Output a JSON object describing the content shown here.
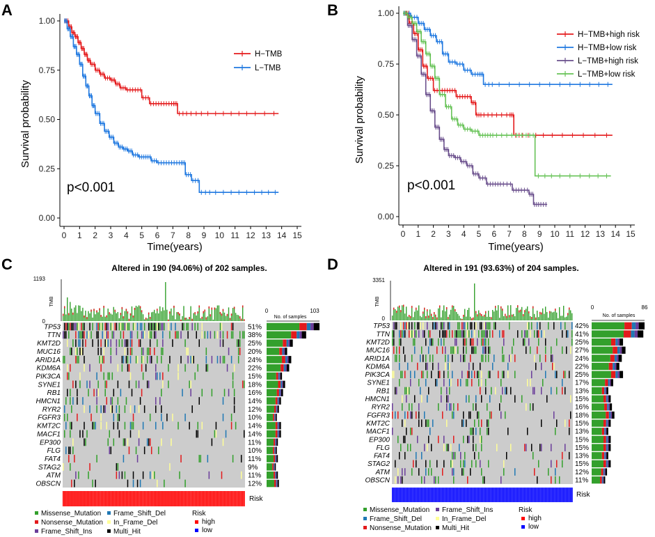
{
  "chart_data": [
    {
      "type": "line",
      "panel": "A",
      "kind": "kaplan-meier",
      "xlabel": "Time(years)",
      "ylabel": "Survival probability",
      "xticks": [
        "0",
        "1",
        "2",
        "3",
        "4",
        "5",
        "6",
        "7",
        "8",
        "9",
        "10",
        "11",
        "12",
        "13",
        "14",
        "15"
      ],
      "yticks": [
        "0.00",
        "0.25",
        "0.50",
        "0.75",
        "1.00"
      ],
      "xlim": [
        0,
        15
      ],
      "ylim": [
        0,
        1
      ],
      "pvalue": "p<0.001",
      "series": [
        {
          "name": "H−TMB",
          "color": "#e41a1c",
          "x": [
            0,
            0.3,
            0.5,
            0.7,
            0.9,
            1.1,
            1.3,
            1.5,
            1.7,
            2.0,
            2.3,
            2.6,
            3.0,
            3.3,
            3.6,
            4.0,
            4.5,
            5.0,
            5.5,
            6.0,
            6.5,
            7.0,
            7.3,
            8.0,
            9.0,
            10.5,
            12.0,
            13.8
          ],
          "y": [
            1.0,
            0.97,
            0.94,
            0.92,
            0.89,
            0.86,
            0.83,
            0.8,
            0.78,
            0.75,
            0.73,
            0.71,
            0.7,
            0.68,
            0.66,
            0.65,
            0.65,
            0.61,
            0.58,
            0.58,
            0.58,
            0.58,
            0.53,
            0.53,
            0.53,
            0.53,
            0.53,
            0.53
          ]
        },
        {
          "name": "L−TMB",
          "color": "#1f78e0",
          "x": [
            0,
            0.2,
            0.4,
            0.6,
            0.8,
            1.0,
            1.2,
            1.4,
            1.6,
            1.8,
            2.0,
            2.3,
            2.6,
            2.9,
            3.2,
            3.5,
            3.8,
            4.1,
            4.4,
            4.8,
            5.2,
            5.6,
            6.0,
            6.5,
            7.0,
            7.5,
            7.8,
            8.2,
            8.7,
            9.5,
            11.0,
            12.5,
            13.8
          ],
          "y": [
            1.0,
            0.96,
            0.92,
            0.87,
            0.83,
            0.78,
            0.72,
            0.67,
            0.62,
            0.57,
            0.53,
            0.48,
            0.44,
            0.41,
            0.38,
            0.36,
            0.35,
            0.34,
            0.32,
            0.31,
            0.31,
            0.29,
            0.28,
            0.28,
            0.28,
            0.28,
            0.22,
            0.19,
            0.13,
            0.13,
            0.13,
            0.13,
            0.13
          ]
        }
      ]
    },
    {
      "type": "line",
      "panel": "B",
      "kind": "kaplan-meier",
      "xlabel": "Time(years)",
      "ylabel": "Survival probability",
      "xticks": [
        "0",
        "1",
        "2",
        "3",
        "4",
        "5",
        "6",
        "7",
        "8",
        "9",
        "10",
        "11",
        "12",
        "13",
        "14",
        "15"
      ],
      "yticks": [
        "0.00",
        "0.25",
        "0.50",
        "0.75",
        "1.00"
      ],
      "xlim": [
        0,
        15
      ],
      "ylim": [
        0,
        1
      ],
      "pvalue": "p<0.001",
      "series": [
        {
          "name": "H−TMB+high risk",
          "color": "#e41a1c",
          "x": [
            0,
            0.4,
            0.7,
            1.0,
            1.3,
            1.6,
            2.0,
            2.5,
            3.0,
            3.5,
            4.0,
            4.5,
            4.8,
            5.2,
            6.0,
            7.0,
            7.3,
            8.0,
            9.5,
            11.5,
            13.8
          ],
          "y": [
            1.0,
            0.95,
            0.9,
            0.82,
            0.74,
            0.68,
            0.62,
            0.62,
            0.62,
            0.59,
            0.59,
            0.56,
            0.5,
            0.5,
            0.5,
            0.5,
            0.4,
            0.4,
            0.4,
            0.4,
            0.4
          ]
        },
        {
          "name": "H−TMB+low risk",
          "color": "#1f78e0",
          "x": [
            0,
            0.5,
            1.0,
            1.4,
            1.8,
            2.2,
            2.6,
            3.0,
            3.5,
            4.0,
            4.5,
            5.0,
            5.3,
            6.0,
            8.0,
            10.0,
            12.0,
            13.8
          ],
          "y": [
            1.0,
            0.98,
            0.95,
            0.92,
            0.89,
            0.86,
            0.8,
            0.76,
            0.75,
            0.72,
            0.7,
            0.7,
            0.65,
            0.65,
            0.65,
            0.65,
            0.65,
            0.65
          ]
        },
        {
          "name": "L−TMB+high risk",
          "color": "#6a4f8c",
          "x": [
            0,
            0.3,
            0.6,
            0.9,
            1.2,
            1.5,
            1.8,
            2.1,
            2.4,
            2.7,
            3.0,
            3.4,
            3.8,
            4.2,
            4.6,
            5.0,
            5.5,
            6.0,
            6.5,
            7.2,
            7.7,
            8.3,
            8.6,
            9.0,
            9.5
          ],
          "y": [
            1.0,
            0.94,
            0.87,
            0.79,
            0.7,
            0.6,
            0.52,
            0.44,
            0.38,
            0.33,
            0.3,
            0.29,
            0.27,
            0.25,
            0.21,
            0.19,
            0.16,
            0.16,
            0.16,
            0.13,
            0.13,
            0.11,
            0.06,
            0.06,
            0.06
          ]
        },
        {
          "name": "L−TMB+low risk",
          "color": "#66c256",
          "x": [
            0,
            0.3,
            0.6,
            0.9,
            1.2,
            1.5,
            1.8,
            2.1,
            2.4,
            2.8,
            3.2,
            3.6,
            4.0,
            4.5,
            5.0,
            5.5,
            6.0,
            7.0,
            8.0,
            8.7,
            10.0,
            12.0,
            13.7
          ],
          "y": [
            1.0,
            0.98,
            0.95,
            0.91,
            0.86,
            0.8,
            0.74,
            0.68,
            0.6,
            0.54,
            0.48,
            0.45,
            0.43,
            0.42,
            0.4,
            0.4,
            0.4,
            0.4,
            0.4,
            0.2,
            0.2,
            0.2,
            0.2
          ]
        }
      ]
    },
    {
      "type": "heatmap",
      "panel": "C",
      "kind": "oncoplot",
      "title": "Altered in 190 (94.06%) of 202 samples.",
      "tmb_label": "TMB",
      "tmb_max": "1193",
      "tmb_min": "0",
      "bar_axis_max": "103",
      "bar_axis_min": "0",
      "bar_axis_label": "No. of samples",
      "risk_label": "Risk",
      "risk_group": "high",
      "genes": [
        "TP53",
        "TTN",
        "KMT2D",
        "MUC16",
        "ARID1A",
        "KDM6A",
        "PIK3CA",
        "SYNE1",
        "RB1",
        "HMCN1",
        "RYR2",
        "FGFR3",
        "KMT2C",
        "MACF1",
        "EP300",
        "FLG",
        "FAT4",
        "STAG2",
        "ATM",
        "OBSCN"
      ],
      "percents": [
        "51%",
        "38%",
        "25%",
        "20%",
        "24%",
        "22%",
        "15%",
        "18%",
        "16%",
        "14%",
        "12%",
        "10%",
        "14%",
        "14%",
        "11%",
        "10%",
        "11%",
        "9%",
        "11%",
        "12%"
      ],
      "counts": [
        103,
        77,
        51,
        40,
        48,
        44,
        30,
        36,
        32,
        28,
        24,
        20,
        28,
        28,
        22,
        20,
        22,
        18,
        22,
        24
      ],
      "legend": [
        "Missense_Mutation",
        "Nonsense_Mutation",
        "Frame_Shift_Ins",
        "Frame_Shift_Del",
        "In_Frame_Del",
        "Multi_Hit"
      ],
      "risk_legend_title": "Risk",
      "risk_legend": [
        "high",
        "low"
      ]
    },
    {
      "type": "heatmap",
      "panel": "D",
      "kind": "oncoplot",
      "title": "Altered in 191 (93.63%) of 204 samples.",
      "tmb_label": "TMB",
      "tmb_max": "3351",
      "tmb_min": "0",
      "bar_axis_max": "86",
      "bar_axis_min": "0",
      "bar_axis_label": "No. of samples",
      "risk_label": "Risk",
      "risk_group": "low",
      "genes": [
        "TP53",
        "TTN",
        "KMT2D",
        "MUC16",
        "ARID1A",
        "KDM6A",
        "PIK3CA",
        "SYNE1",
        "RB1",
        "HMCN1",
        "RYR2",
        "FGFR3",
        "KMT2C",
        "MACF1",
        "EP300",
        "FLG",
        "FAT4",
        "STAG2",
        "ATM",
        "OBSCN"
      ],
      "percents": [
        "42%",
        "41%",
        "25%",
        "27%",
        "24%",
        "22%",
        "25%",
        "17%",
        "13%",
        "15%",
        "16%",
        "18%",
        "15%",
        "13%",
        "15%",
        "15%",
        "13%",
        "15%",
        "12%",
        "11%"
      ],
      "counts": [
        86,
        84,
        51,
        55,
        49,
        45,
        51,
        35,
        27,
        31,
        33,
        37,
        31,
        27,
        31,
        31,
        27,
        31,
        25,
        22
      ],
      "legend": [
        "Missense_Mutation",
        "Frame_Shift_Del",
        "Nonsense_Mutation",
        "Frame_Shift_Ins",
        "In_Frame_Del",
        "Multi_Hit"
      ],
      "risk_legend_title": "Risk",
      "risk_legend": [
        "high",
        "low"
      ]
    }
  ],
  "panel_labels": [
    "A",
    "B",
    "C",
    "D"
  ],
  "colors": {
    "missense": "#33a02c",
    "nonsense": "#e31a1c",
    "frame_shift_ins": "#6a3d9a",
    "frame_shift_del": "#1f78b4",
    "in_frame_del": "#ffff99",
    "multi_hit": "#000000",
    "risk_high": "#ff0000",
    "risk_low": "#0000ff",
    "cell_bg": "#cccccc"
  }
}
